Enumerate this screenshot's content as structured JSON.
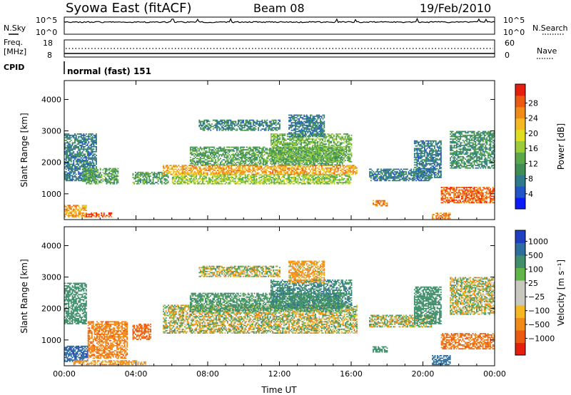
{
  "header": {
    "station": "Syowa East (fitACF)",
    "beam": "Beam 08",
    "date": "19/Feb/2010"
  },
  "strip_labels": {
    "nsky": "N.Sky",
    "nsky_hi": "10^5",
    "nsky_lo": "10^0",
    "nsearch": "N.Search",
    "nsearch_hi": "10^5",
    "nsearch_lo": "10^0",
    "freq_label_1": "Freq.",
    "freq_label_2": "[MHz]",
    "freq_hi": "18",
    "freq_lo": "8",
    "nave": "Nave",
    "nave_hi": "60",
    "nave_lo": "0",
    "cpid": "CPID",
    "cpid_value": "normal (fast) 151"
  },
  "colors": {
    "power_scale": [
      "#0a1cff",
      "#2255c8",
      "#2d7a8c",
      "#3f8f55",
      "#5aa84a",
      "#9ccc38",
      "#e0dc20",
      "#f5b820",
      "#f08a18",
      "#ec5a12",
      "#e61e0c"
    ],
    "velocity_scale": [
      "#e61e0c",
      "#ec5a12",
      "#f08a18",
      "#f5b820",
      "#c8c8c0",
      "#c8c8c0",
      "#62b548",
      "#3f8f6a",
      "#2d6e9e",
      "#1d3fc0"
    ]
  },
  "chart_data": [
    {
      "type": "heatmap",
      "panel": "power",
      "ylabel": "Slant Range [km]",
      "ylim": [
        180,
        4600
      ],
      "yticks": [
        "1000",
        "2000",
        "3000",
        "4000"
      ],
      "ytick_values": [
        1000,
        2000,
        3000,
        4000
      ],
      "colorbar_label": "Power [dB]",
      "colorbar_ticks": [
        "4",
        "8",
        "12",
        "16",
        "20",
        "24",
        "28"
      ],
      "colorbar_values": [
        4,
        8,
        12,
        16,
        20,
        24,
        28
      ],
      "colorbar_range": [
        0,
        33
      ],
      "x_hours": [
        0,
        24
      ],
      "echo_regions": [
        {
          "t0": 0.0,
          "t1": 1.2,
          "r0": 250,
          "r1": 650,
          "v": 24
        },
        {
          "t0": 1.2,
          "t1": 2.6,
          "r0": 250,
          "r1": 400,
          "v": 30
        },
        {
          "t0": 0.0,
          "t1": 1.8,
          "r0": 1400,
          "r1": 2900,
          "v": 8
        },
        {
          "t0": 1.0,
          "t1": 3.0,
          "r0": 1300,
          "r1": 1800,
          "v": 12
        },
        {
          "t0": 3.8,
          "t1": 5.8,
          "r0": 1300,
          "r1": 1700,
          "v": 12
        },
        {
          "t0": 5.5,
          "t1": 16.3,
          "r0": 1600,
          "r1": 1900,
          "v": 24
        },
        {
          "t0": 6.0,
          "t1": 16.0,
          "r0": 1300,
          "r1": 1600,
          "v": 16
        },
        {
          "t0": 7.0,
          "t1": 15.5,
          "r0": 1900,
          "r1": 2500,
          "v": 12
        },
        {
          "t0": 11.5,
          "t1": 16.0,
          "r0": 2000,
          "r1": 2900,
          "v": 14
        },
        {
          "t0": 7.5,
          "t1": 12.0,
          "r0": 3000,
          "r1": 3350,
          "v": 9
        },
        {
          "t0": 12.5,
          "t1": 14.5,
          "r0": 2800,
          "r1": 3500,
          "v": 8
        },
        {
          "t0": 17.2,
          "t1": 18.0,
          "r0": 600,
          "r1": 800,
          "v": 26
        },
        {
          "t0": 17.0,
          "t1": 20.5,
          "r0": 1400,
          "r1": 1800,
          "v": 8
        },
        {
          "t0": 19.5,
          "t1": 21.0,
          "r0": 1500,
          "r1": 2700,
          "v": 8
        },
        {
          "t0": 20.5,
          "t1": 21.5,
          "r0": 200,
          "r1": 400,
          "v": 26
        },
        {
          "t0": 21.0,
          "t1": 24.0,
          "r0": 700,
          "r1": 1200,
          "v": 28
        },
        {
          "t0": 21.5,
          "t1": 24.0,
          "r0": 1800,
          "r1": 3000,
          "v": 10
        }
      ]
    },
    {
      "type": "heatmap",
      "panel": "velocity",
      "xlabel": "Time UT",
      "xticks": [
        "00:00",
        "04:00",
        "08:00",
        "12:00",
        "16:00",
        "20:00",
        "00:00"
      ],
      "xtick_values": [
        0,
        4,
        8,
        12,
        16,
        20,
        24
      ],
      "ylabel": "Slant Range [km]",
      "ylim": [
        180,
        4600
      ],
      "yticks": [
        "1000",
        "2000",
        "3000",
        "4000"
      ],
      "ytick_values": [
        1000,
        2000,
        3000,
        4000
      ],
      "colorbar_label": "Velocity [m s⁻¹]",
      "colorbar_ticks": [
        "1000",
        "500",
        "100",
        "25",
        "−25",
        "−100",
        "−500",
        "−1000"
      ],
      "x_hours": [
        0,
        24
      ],
      "echo_regions": [
        {
          "t0": 0.0,
          "t1": 1.3,
          "r0": 300,
          "r1": 800,
          "v": 900
        },
        {
          "t0": 0.0,
          "t1": 1.2,
          "r0": 1500,
          "r1": 2800,
          "v": 300
        },
        {
          "t0": 1.3,
          "t1": 3.5,
          "r0": 400,
          "r1": 1600,
          "v": -400
        },
        {
          "t0": 3.8,
          "t1": 4.8,
          "r0": 1000,
          "r1": 1500,
          "v": -600
        },
        {
          "t0": 0.5,
          "t1": 4.5,
          "r0": 200,
          "r1": 350,
          "v": -200
        },
        {
          "t0": 5.5,
          "t1": 16.3,
          "r0": 1200,
          "r1": 2100,
          "v": 0
        },
        {
          "t0": 7.0,
          "t1": 15.5,
          "r0": 1900,
          "r1": 2500,
          "v": 200
        },
        {
          "t0": 11.5,
          "t1": 16.0,
          "r0": 2000,
          "r1": 2900,
          "v": 400
        },
        {
          "t0": 7.5,
          "t1": 12.0,
          "r0": 3000,
          "r1": 3350,
          "v": 0
        },
        {
          "t0": 12.5,
          "t1": 14.5,
          "r0": 2800,
          "r1": 3500,
          "v": -150
        },
        {
          "t0": 17.2,
          "t1": 18.0,
          "r0": 600,
          "r1": 800,
          "v": 300
        },
        {
          "t0": 17.0,
          "t1": 20.5,
          "r0": 1400,
          "r1": 1800,
          "v": 0
        },
        {
          "t0": 19.5,
          "t1": 21.0,
          "r0": 1500,
          "r1": 2700,
          "v": 300
        },
        {
          "t0": 20.5,
          "t1": 21.5,
          "r0": 200,
          "r1": 500,
          "v": 800
        },
        {
          "t0": 21.0,
          "t1": 24.0,
          "r0": 700,
          "r1": 1200,
          "v": -500
        },
        {
          "t0": 21.5,
          "t1": 24.0,
          "r0": 1800,
          "r1": 3000,
          "v": 0
        }
      ]
    }
  ]
}
